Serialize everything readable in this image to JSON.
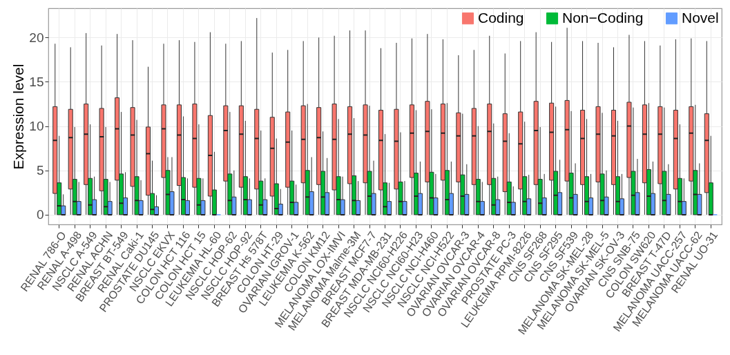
{
  "chart_data": {
    "type": "box",
    "ylabel": "Expression level",
    "ylim": [
      -1.1,
      23.3
    ],
    "yticks": [
      0,
      5,
      10,
      15,
      20
    ],
    "grid": true,
    "legend": "top right",
    "categories": [
      "RENAL 786-O",
      "RENAL A-498",
      "NSCLC A-549",
      "RENAL ACHN",
      "BREAST BT-549",
      "RENAL Caki-1",
      "PROSTATE DU145",
      "NSCLC EKVX",
      "COLON HCT 116",
      "COLON HCT 15",
      "LEUKEMIA HL-60",
      "NSCLC HOP-62",
      "NSCLC HOP-92",
      "BREAST Hs 578T",
      "COLON HT-29",
      "OVARIAN IGROV-1",
      "LEUKEMIA K-562",
      "COLON KM12",
      "MELANOMA LOX-IMVI",
      "MELANOMA Malme-3M",
      "BREAST MCF7-7",
      "BREAST MDA-MB-231",
      "NSCLC NCI60-H226",
      "NSCLC NCI60-H23",
      "NSCLC NCI-H460",
      "NSCLC NCI-H522",
      "OVARIAN OVCAR-3",
      "OVARIAN OVCAR-4",
      "OVARIAN OVCAR-8",
      "PROSTATE PC-3",
      "LEUKEMIA RPMI-8226",
      "CNS SF268",
      "CNS SF295",
      "CNS SF539",
      "MELANOMA SK-MEL-28",
      "MELANOMA SK-MEL-5",
      "OVARIAN SK-OV-3",
      "CNS SNB-75",
      "COLON SW620",
      "BREAST T-47D",
      "MELANOMA UACC-257",
      "MELANOMA UACC-62",
      "RENAL UO-31"
    ],
    "series": [
      {
        "name": "Coding",
        "color": "#f8766d",
        "boxes": [
          {
            "low": 0,
            "q1": 2.4,
            "median": 8.4,
            "q3": 12.2,
            "high": 19.3
          },
          {
            "low": 0,
            "q1": 2.9,
            "median": 8.7,
            "q3": 11.9,
            "high": 18.9
          },
          {
            "low": 0,
            "q1": 3.4,
            "median": 9.1,
            "q3": 12.5,
            "high": 20.5
          },
          {
            "low": 0,
            "q1": 2.7,
            "median": 8.8,
            "q3": 12.0,
            "high": 19.1
          },
          {
            "low": 0,
            "q1": 3.9,
            "median": 9.7,
            "q3": 13.2,
            "high": 20.4
          },
          {
            "low": 0,
            "q1": 3.2,
            "median": 9.0,
            "q3": 12.1,
            "high": 19.7
          },
          {
            "low": 0,
            "q1": 2.2,
            "median": 6.9,
            "q3": 9.9,
            "high": 16.7
          },
          {
            "low": 0,
            "q1": 4.2,
            "median": 9.7,
            "q3": 12.4,
            "high": 19.3
          },
          {
            "low": 0,
            "q1": 3.3,
            "median": 9.0,
            "q3": 12.4,
            "high": 19.7
          },
          {
            "low": 0,
            "q1": 3.1,
            "median": 8.6,
            "q3": 12.5,
            "high": 19.5
          },
          {
            "low": 0,
            "q1": 2.1,
            "median": 6.7,
            "q3": 11.2,
            "high": 20.6
          },
          {
            "low": 0,
            "q1": 3.8,
            "median": 9.5,
            "q3": 12.3,
            "high": 19.3
          },
          {
            "low": 0,
            "q1": 3.1,
            "median": 9.1,
            "q3": 12.3,
            "high": 19.6
          },
          {
            "low": 0,
            "q1": 2.9,
            "median": 8.6,
            "q3": 11.9,
            "high": 22.2
          },
          {
            "low": 0,
            "q1": 2.1,
            "median": 7.5,
            "q3": 11.0,
            "high": 18.3
          },
          {
            "low": 0,
            "q1": 3.1,
            "median": 8.2,
            "q3": 11.6,
            "high": 18.6
          },
          {
            "low": 0,
            "q1": 3.6,
            "median": 8.5,
            "q3": 12.3,
            "high": 19.6
          },
          {
            "low": 0,
            "q1": 3.4,
            "median": 8.7,
            "q3": 12.1,
            "high": 20.0
          },
          {
            "low": 0,
            "q1": 2.8,
            "median": 8.5,
            "q3": 12.5,
            "high": 20.2
          },
          {
            "low": 0,
            "q1": 3.5,
            "median": 9.1,
            "q3": 12.2,
            "high": 20.8
          },
          {
            "low": 0,
            "q1": 3.6,
            "median": 9.0,
            "q3": 12.4,
            "high": 20.8
          },
          {
            "low": 0,
            "q1": 2.8,
            "median": 8.4,
            "q3": 11.8,
            "high": 18.8
          },
          {
            "low": 0,
            "q1": 2.9,
            "median": 8.3,
            "q3": 11.9,
            "high": 19.4
          },
          {
            "low": 0,
            "q1": 4.2,
            "median": 9.2,
            "q3": 12.4,
            "high": 19.9
          },
          {
            "low": 0,
            "q1": 3.7,
            "median": 9.4,
            "q3": 12.8,
            "high": 20.4
          },
          {
            "low": 0,
            "q1": 3.9,
            "median": 9.2,
            "q3": 12.5,
            "high": 19.8
          },
          {
            "low": 0,
            "q1": 3.7,
            "median": 8.9,
            "q3": 11.5,
            "high": 18.0
          },
          {
            "low": 0,
            "q1": 3.4,
            "median": 8.9,
            "q3": 12.0,
            "high": 18.6
          },
          {
            "low": 0,
            "q1": 3.4,
            "median": 9.4,
            "q3": 12.5,
            "high": 20.2
          },
          {
            "low": 0,
            "q1": 2.6,
            "median": 8.3,
            "q3": 11.4,
            "high": 18.2
          },
          {
            "low": 0,
            "q1": 2.9,
            "median": 8.0,
            "q3": 11.6,
            "high": 19.6
          },
          {
            "low": 0,
            "q1": 3.4,
            "median": 9.5,
            "q3": 12.8,
            "high": 20.6
          },
          {
            "low": 0,
            "q1": 3.9,
            "median": 9.3,
            "q3": 12.6,
            "high": 19.5
          },
          {
            "low": 0,
            "q1": 3.8,
            "median": 9.6,
            "q3": 12.9,
            "high": 21.1
          },
          {
            "low": 0,
            "q1": 3.4,
            "median": 8.6,
            "q3": 11.8,
            "high": 19.6
          },
          {
            "low": 0,
            "q1": 3.7,
            "median": 9.1,
            "q3": 12.2,
            "high": 19.4
          },
          {
            "low": 0,
            "q1": 3.4,
            "median": 8.9,
            "q3": 11.8,
            "high": 18.9
          },
          {
            "low": 0,
            "q1": 4.2,
            "median": 10.0,
            "q3": 12.7,
            "high": 20.3
          },
          {
            "low": 0,
            "q1": 3.6,
            "median": 9.1,
            "q3": 12.4,
            "high": 19.6
          },
          {
            "low": 0,
            "q1": 3.5,
            "median": 9.1,
            "q3": 12.2,
            "high": 19.1
          },
          {
            "low": 0,
            "q1": 2.9,
            "median": 8.6,
            "q3": 11.8,
            "high": 19.8
          },
          {
            "low": 0,
            "q1": 3.8,
            "median": 9.2,
            "q3": 12.2,
            "high": 19.9
          },
          {
            "low": 0,
            "q1": 2.5,
            "median": 8.4,
            "q3": 11.4,
            "high": 19.6
          }
        ]
      },
      {
        "name": "Non−Coding",
        "color": "#00ba38",
        "boxes": [
          {
            "low": 0,
            "q1": 0,
            "median": 1.0,
            "q3": 3.6,
            "high": 8.9
          },
          {
            "low": 0,
            "q1": 0,
            "median": 1.5,
            "q3": 4.0,
            "high": 9.9
          },
          {
            "low": 0,
            "q1": 0,
            "median": 1.1,
            "q3": 4.1,
            "high": 10.2
          },
          {
            "low": 0,
            "q1": 0,
            "median": 0.9,
            "q3": 4.0,
            "high": 9.9
          },
          {
            "low": 0,
            "q1": 0,
            "median": 1.3,
            "q3": 4.6,
            "high": 11.6
          },
          {
            "low": 0,
            "q1": 0,
            "median": 1.6,
            "q3": 4.3,
            "high": 10.7
          },
          {
            "low": 0,
            "q1": 0,
            "median": 0.6,
            "q3": 2.4,
            "high": 6.1
          },
          {
            "low": 0,
            "q1": 0,
            "median": 2.3,
            "q3": 5.0,
            "high": 6.5
          },
          {
            "low": 0,
            "q1": 0,
            "median": 1.7,
            "q3": 4.2,
            "high": 11.1
          },
          {
            "low": 0,
            "q1": 0,
            "median": 1.1,
            "q3": 4.1,
            "high": 10.2
          },
          {
            "low": 0,
            "q1": 0,
            "median": 0,
            "q3": 2.8,
            "high": 7.1
          },
          {
            "low": 0,
            "q1": 0,
            "median": 1.6,
            "q3": 4.6,
            "high": 11.6
          },
          {
            "low": 0,
            "q1": 0,
            "median": 1.7,
            "q3": 4.3,
            "high": 10.6
          },
          {
            "low": 0,
            "q1": 0,
            "median": 1.1,
            "q3": 3.8,
            "high": 9.5
          },
          {
            "low": 0,
            "q1": 0,
            "median": 0.7,
            "q3": 3.5,
            "high": 8.6
          },
          {
            "low": 0,
            "q1": 0,
            "median": 1.4,
            "q3": 3.8,
            "high": 9.5
          },
          {
            "low": 0,
            "q1": 0,
            "median": 2.0,
            "q3": 5.0,
            "high": 12.5
          },
          {
            "low": 0,
            "q1": 0,
            "median": 2.0,
            "q3": 4.9,
            "high": 9.4
          },
          {
            "low": 0,
            "q1": 0,
            "median": 1.7,
            "q3": 4.3,
            "high": 10.8
          },
          {
            "low": 0,
            "q1": 0,
            "median": 1.6,
            "q3": 4.4,
            "high": 10.9
          },
          {
            "low": 0,
            "q1": 0,
            "median": 2.1,
            "q3": 4.9,
            "high": 12.3
          },
          {
            "low": 0,
            "q1": 0,
            "median": 0.9,
            "q3": 3.6,
            "high": 9.1
          },
          {
            "low": 0,
            "q1": 0,
            "median": 1.5,
            "q3": 3.7,
            "high": 9.3
          },
          {
            "low": 0,
            "q1": 0,
            "median": 2.1,
            "q3": 4.7,
            "high": 11.8
          },
          {
            "low": 0,
            "q1": 0,
            "median": 1.9,
            "q3": 4.8,
            "high": 11.9
          },
          {
            "low": 0,
            "q1": 0,
            "median": 1.7,
            "q3": 5.0,
            "high": 12.6
          },
          {
            "low": 0,
            "q1": 0,
            "median": 2.1,
            "q3": 4.5,
            "high": 11.4
          },
          {
            "low": 0,
            "q1": 0,
            "median": 1.5,
            "q3": 4.0,
            "high": 10.0
          },
          {
            "low": 0,
            "q1": 0,
            "median": 1.1,
            "q3": 4.1,
            "high": 10.3
          },
          {
            "low": 0,
            "q1": 0,
            "median": 1.4,
            "q3": 3.7,
            "high": 9.2
          },
          {
            "low": 0,
            "q1": 0,
            "median": 1.5,
            "q3": 4.3,
            "high": 10.5
          },
          {
            "low": 0,
            "q1": 0,
            "median": 1.3,
            "q3": 4.0,
            "high": 9.9
          },
          {
            "low": 0,
            "q1": 0,
            "median": 2.2,
            "q3": 4.9,
            "high": 12.2
          },
          {
            "low": 0,
            "q1": 0,
            "median": 1.9,
            "q3": 4.7,
            "high": 11.7
          },
          {
            "low": 0,
            "q1": 0,
            "median": 1.5,
            "q3": 4.3,
            "high": 10.8
          },
          {
            "low": 0,
            "q1": 0,
            "median": 1.6,
            "q3": 4.6,
            "high": 11.5
          },
          {
            "low": 0,
            "q1": 0,
            "median": 1.5,
            "q3": 4.3,
            "high": 10.6
          },
          {
            "low": 0,
            "q1": 0,
            "median": 2.2,
            "q3": 4.9,
            "high": 12.1
          },
          {
            "low": 0,
            "q1": 0,
            "median": 2.1,
            "q3": 5.1,
            "high": 12.6
          },
          {
            "low": 0,
            "q1": 0,
            "median": 1.6,
            "q3": 4.9,
            "high": 12.1
          },
          {
            "low": 0,
            "q1": 0,
            "median": 1.5,
            "q3": 4.1,
            "high": 10.2
          },
          {
            "low": 0,
            "q1": 0,
            "median": 2.3,
            "q3": 5.0,
            "high": 12.4
          },
          {
            "low": 0,
            "q1": 0,
            "median": 0,
            "q3": 3.6,
            "high": 8.9
          }
        ]
      },
      {
        "name": "Novel",
        "color": "#619cff",
        "boxes": [
          {
            "low": 0,
            "q1": 0,
            "median": 0,
            "q3": 1.0,
            "high": 2.3
          },
          {
            "low": 0,
            "q1": 0,
            "median": 0,
            "q3": 1.5,
            "high": 3.7
          },
          {
            "low": 0,
            "q1": 0,
            "median": 0,
            "q3": 1.7,
            "high": 4.3
          },
          {
            "low": 0,
            "q1": 0,
            "median": 0,
            "q3": 1.5,
            "high": 3.7
          },
          {
            "low": 0,
            "q1": 0,
            "median": 0,
            "q3": 1.9,
            "high": 4.8
          },
          {
            "low": 0,
            "q1": 0,
            "median": 0,
            "q3": 1.6,
            "high": 3.9
          },
          {
            "low": 0,
            "q1": 0,
            "median": 0,
            "q3": 0.9,
            "high": 2.2
          },
          {
            "low": 0,
            "q1": 0,
            "median": 0,
            "q3": 2.6,
            "high": 6.5
          },
          {
            "low": 0,
            "q1": 0,
            "median": 0,
            "q3": 1.6,
            "high": 4.1
          },
          {
            "low": 0,
            "q1": 0,
            "median": 0,
            "q3": 1.6,
            "high": 4.1
          },
          {
            "low": 0,
            "q1": 0,
            "median": 0,
            "q3": 0,
            "high": 0
          },
          {
            "low": 0,
            "q1": 0,
            "median": 0,
            "q3": 2.0,
            "high": 5.0
          },
          {
            "low": 0,
            "q1": 0,
            "median": 0,
            "q3": 1.7,
            "high": 4.1
          },
          {
            "low": 0,
            "q1": 0,
            "median": 0,
            "q3": 1.7,
            "high": 4.1
          },
          {
            "low": 0,
            "q1": 0,
            "median": 0,
            "q3": 1.2,
            "high": 2.9
          },
          {
            "low": 0,
            "q1": 0,
            "median": 0,
            "q3": 1.4,
            "high": 3.4
          },
          {
            "low": 0,
            "q1": 0,
            "median": 0,
            "q3": 2.6,
            "high": 6.5
          },
          {
            "low": 0,
            "q1": 0,
            "median": 0,
            "q3": 2.5,
            "high": 6.4
          },
          {
            "low": 0,
            "q1": 0,
            "median": 0,
            "q3": 1.7,
            "high": 4.3
          },
          {
            "low": 0,
            "q1": 0,
            "median": 0,
            "q3": 1.6,
            "high": 3.8
          },
          {
            "low": 0,
            "q1": 0,
            "median": 0,
            "q3": 2.4,
            "high": 6.1
          },
          {
            "low": 0,
            "q1": 0,
            "median": 0,
            "q3": 1.5,
            "high": 3.6
          },
          {
            "low": 0,
            "q1": 0,
            "median": 0,
            "q3": 1.5,
            "high": 3.8
          },
          {
            "low": 0,
            "q1": 0,
            "median": 0,
            "q3": 2.4,
            "high": 6.0
          },
          {
            "low": 0,
            "q1": 0,
            "median": 0,
            "q3": 1.9,
            "high": 4.6
          },
          {
            "low": 0,
            "q1": 0,
            "median": 0,
            "q3": 2.4,
            "high": 6.0
          },
          {
            "low": 0,
            "q1": 0,
            "median": 0,
            "q3": 2.3,
            "high": 5.7
          },
          {
            "low": 0,
            "q1": 0,
            "median": 0,
            "q3": 1.5,
            "high": 3.7
          },
          {
            "low": 0,
            "q1": 0,
            "median": 0,
            "q3": 1.7,
            "high": 4.3
          },
          {
            "low": 0,
            "q1": 0,
            "median": 0,
            "q3": 1.4,
            "high": 3.2
          },
          {
            "low": 0,
            "q1": 0,
            "median": 0,
            "q3": 1.8,
            "high": 4.5
          },
          {
            "low": 0,
            "q1": 0,
            "median": 0,
            "q3": 1.9,
            "high": 4.6
          },
          {
            "low": 0,
            "q1": 0,
            "median": 0,
            "q3": 2.5,
            "high": 6.2
          },
          {
            "low": 0,
            "q1": 0,
            "median": 0,
            "q3": 2.3,
            "high": 5.8
          },
          {
            "low": 0,
            "q1": 0,
            "median": 0,
            "q3": 1.9,
            "high": 4.6
          },
          {
            "low": 0,
            "q1": 0,
            "median": 0,
            "q3": 2.0,
            "high": 5.0
          },
          {
            "low": 0,
            "q1": 0,
            "median": 0,
            "q3": 1.8,
            "high": 4.6
          },
          {
            "low": 0,
            "q1": 0,
            "median": 0,
            "q3": 2.5,
            "high": 6.3
          },
          {
            "low": 0,
            "q1": 0,
            "median": 0,
            "q3": 2.4,
            "high": 6.0
          },
          {
            "low": 0,
            "q1": 0,
            "median": 0,
            "q3": 2.3,
            "high": 5.7
          },
          {
            "low": 0,
            "q1": 0,
            "median": 0,
            "q3": 1.5,
            "high": 4.1
          },
          {
            "low": 0,
            "q1": 0,
            "median": 0,
            "q3": 2.3,
            "high": 5.8
          },
          {
            "low": 0,
            "q1": 0,
            "median": 0,
            "q3": 0,
            "high": 0
          }
        ]
      }
    ]
  }
}
